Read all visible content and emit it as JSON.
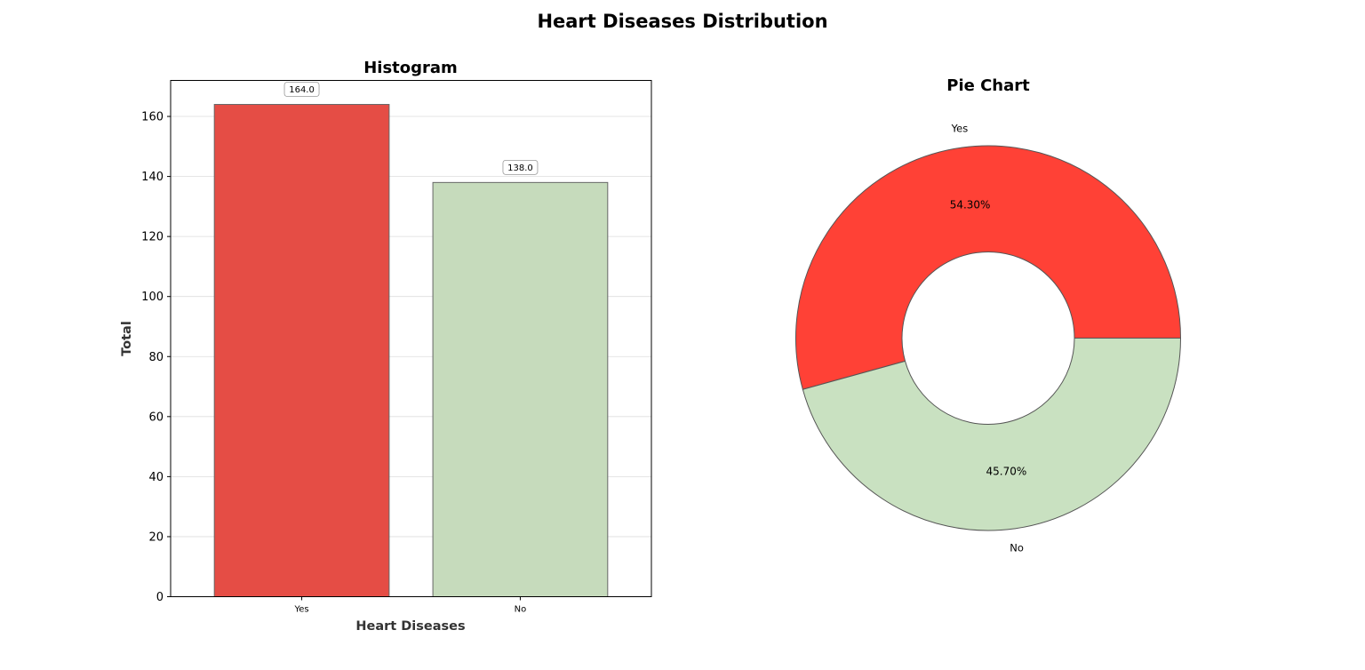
{
  "figure": {
    "title": "Heart Diseases Distribution"
  },
  "colors": {
    "yes_bar": "#e54d45",
    "no_bar": "#c6dbbc",
    "yes_slice": "#ff4136",
    "no_slice": "#c9e1c1",
    "edge": "#666666",
    "grid": "#dddddd"
  },
  "chart_data": [
    {
      "type": "bar",
      "title": "Histogram",
      "xlabel": "Heart Diseases",
      "ylabel": "Total",
      "categories": [
        "Yes",
        "No"
      ],
      "values": [
        164,
        138
      ],
      "data_labels": [
        "164.0",
        "138.0"
      ],
      "ylim": [
        0,
        172
      ],
      "yticks": [
        "0",
        "20",
        "40",
        "60",
        "80",
        "100",
        "120",
        "140",
        "160"
      ],
      "grid": "y-axis on"
    },
    {
      "type": "pie",
      "title": "Pie Chart",
      "categories": [
        "Yes",
        "No"
      ],
      "values": [
        54.3,
        45.7
      ],
      "pct_labels": [
        "54.30%",
        "45.70%"
      ],
      "donut": true
    }
  ]
}
